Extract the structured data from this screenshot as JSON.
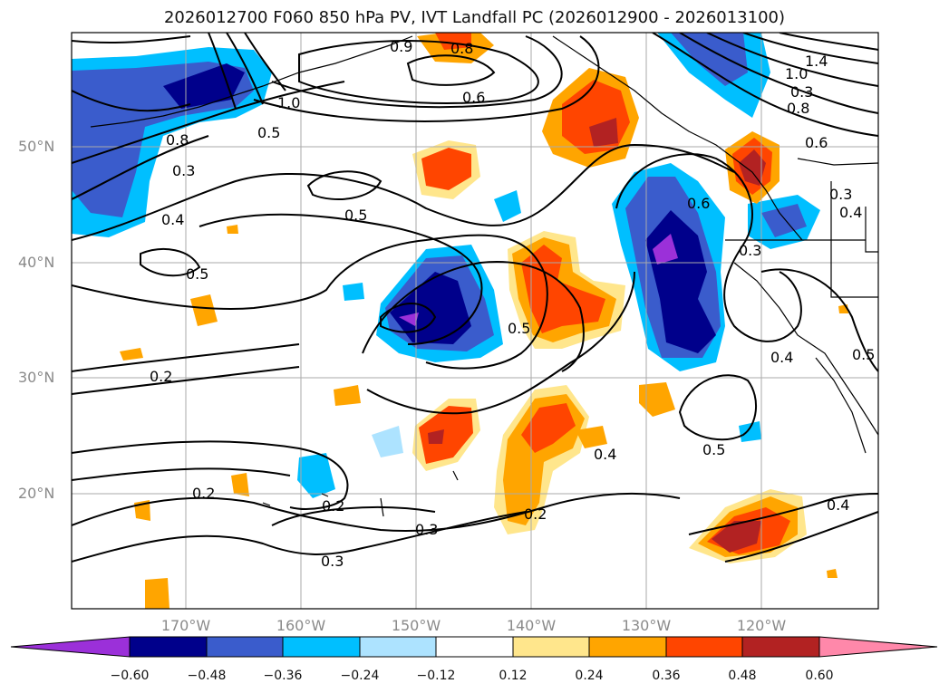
{
  "title": "2026012700 F060 850 hPa PV, IVT Landfall PC (2026012900 - 2026013100)",
  "lat_labels": [
    "50°N",
    "40°N",
    "30°N",
    "20°N"
  ],
  "lon_labels": [
    "170°W",
    "160°W",
    "150°W",
    "140°W",
    "130°W",
    "120°W"
  ],
  "colorbar": {
    "ticks": [
      "−0.60",
      "−0.48",
      "−0.36",
      "−0.24",
      "−0.12",
      "0.12",
      "0.24",
      "0.36",
      "0.48",
      "0.60"
    ],
    "colors": [
      "#9b30d9",
      "#00008b",
      "#3a5ccc",
      "#00bfff",
      "#ade3ff",
      "#ffffff",
      "#ffe68c",
      "#ffa500",
      "#ff4500",
      "#b22222",
      "#ff88aa"
    ]
  },
  "contour_labels": [
    "0.8",
    "1.0",
    "0.6",
    "0.8",
    "0.5",
    "0.2",
    "0.3",
    "0.4",
    "0.5",
    "0.5",
    "0.2",
    "0.2",
    "0.3",
    "0.3",
    "0.2",
    "0.4",
    "0.5",
    "0.5",
    "0.6",
    "0.3",
    "0.4",
    "0.5",
    "0.4",
    "0.3",
    "1.4",
    "1.0",
    "0.8",
    "0.6",
    "0.3",
    "0.4",
    "0.9"
  ],
  "shading_colors": {
    "purple": "#9b30d9",
    "navy": "#00008b",
    "royal": "#3a5ccc",
    "sky": "#00bfff",
    "pale_blue": "#ade3ff",
    "pale_yellow": "#ffe68c",
    "orange": "#ffa500",
    "red_orange": "#ff4500",
    "firebrick": "#b22222"
  }
}
